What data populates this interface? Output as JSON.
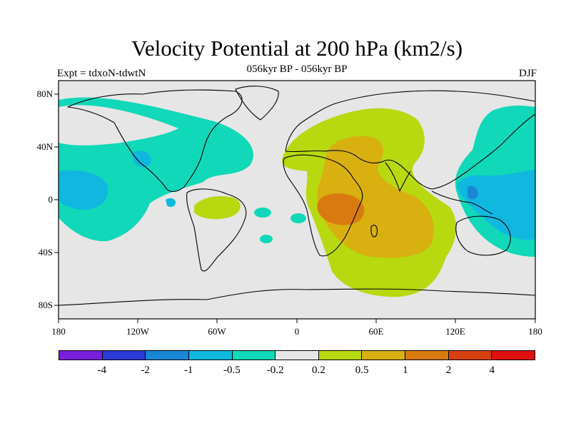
{
  "title": "Velocity Potential at 200 hPa (km2/s)",
  "subtitle": "056kyr BP - 056kyr BP",
  "experiment": "Expt = tdxoN-tdwtN",
  "season": "DJF",
  "map": {
    "lon_range": [
      -180,
      180
    ],
    "lat_range": [
      -90,
      90
    ],
    "y_ticks": [
      "80N",
      "40N",
      "0",
      "40S",
      "80S"
    ],
    "x_ticks": [
      "180",
      "120W",
      "60W",
      "0",
      "60E",
      "120E",
      "180"
    ]
  },
  "colorbar": {
    "colors": [
      "#7a1fdc",
      "#2b3ad6",
      "#1a86d6",
      "#10b8e0",
      "#10d8b8",
      "#e6e6e6",
      "#b8d810",
      "#d8b010",
      "#d87a10",
      "#d84010",
      "#e01010"
    ],
    "labels": [
      "-4",
      "-2",
      "-1",
      "-0.5",
      "-0.2",
      "0.2",
      "0.5",
      "1",
      "2",
      "4"
    ]
  }
}
